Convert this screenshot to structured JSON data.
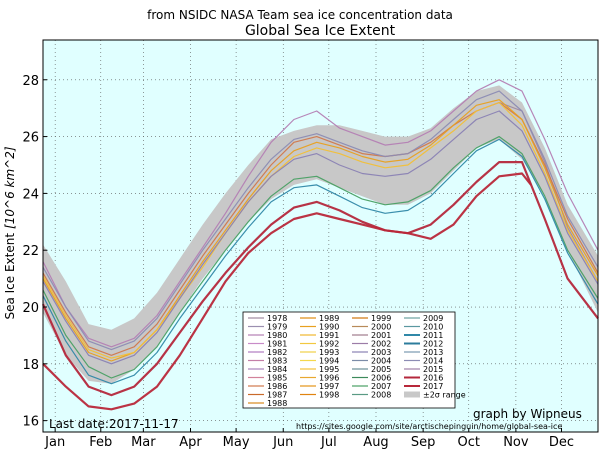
{
  "chart_data": {
    "type": "line",
    "subtitle": "from NSIDC NASA Team sea ice concentration data",
    "title": "Global Sea Ice Extent",
    "ylabel": "Sea Ice Extent",
    "ylabel_unit": "[10^6 km^2]",
    "xlabel": "",
    "ylim": [
      15.6,
      29.4
    ],
    "xlim": [
      0,
      365
    ],
    "grid": true,
    "background": "#e0ffff",
    "yticks": [
      16,
      18,
      20,
      22,
      24,
      26,
      28
    ],
    "xticks": [
      {
        "label": "Jan",
        "day": 8
      },
      {
        "label": "Feb",
        "day": 38
      },
      {
        "label": "Mar",
        "day": 66
      },
      {
        "label": "Apr",
        "day": 97
      },
      {
        "label": "May",
        "day": 127
      },
      {
        "label": "Jun",
        "day": 158
      },
      {
        "label": "Jul",
        "day": 188
      },
      {
        "label": "Aug",
        "day": 219
      },
      {
        "label": "Sep",
        "day": 250
      },
      {
        "label": "Oct",
        "day": 280
      },
      {
        "label": "Nov",
        "day": 311
      },
      {
        "label": "Dec",
        "day": 341
      }
    ],
    "legend_position": "bottom-center",
    "legend_columns": [
      [
        "1978",
        "1979",
        "1980",
        "1981",
        "1982",
        "1983",
        "1984",
        "1985",
        "1986",
        "1987",
        "1988"
      ],
      [
        "1989",
        "1990",
        "1991",
        "1992",
        "1993",
        "1994",
        "1995",
        "1996",
        "1997",
        "1998"
      ],
      [
        "1999",
        "2000",
        "2001",
        "2002",
        "2003",
        "2004",
        "2005",
        "2006",
        "2007",
        "2008"
      ],
      [
        "2009",
        "2010",
        "2011",
        "2012",
        "2013",
        "2014",
        "2015",
        "2016",
        "2017",
        "±2σ range"
      ]
    ],
    "legend_colors": {
      "1978": "#a08aa0",
      "1979": "#9b8fb0",
      "1980": "#b47fb4",
      "1981": "#c88bc8",
      "1982": "#b07bc0",
      "1983": "#c47fa8",
      "1984": "#a884bc",
      "1985": "#d2829a",
      "1986": "#d0784c",
      "1987": "#c96a2a",
      "1988": "#d98a1e",
      "1989": "#e08c10",
      "1990": "#e8a020",
      "1991": "#f0b830",
      "1992": "#f2c840",
      "1993": "#f0d048",
      "1994": "#f4d84c",
      "1995": "#f2c038",
      "1996": "#e8a830",
      "1997": "#e49418",
      "1998": "#e08410",
      "1999": "#d0760c",
      "2000": "#b88a5a",
      "2001": "#a07c8c",
      "2002": "#9c7ca8",
      "2003": "#8a82b4",
      "2004": "#7c8ca8",
      "2005": "#6c9098",
      "2006": "#3c8a5c",
      "2007": "#4aa064",
      "2008": "#5a9a84",
      "2009": "#6ca2a0",
      "2010": "#5a98a0",
      "2011": "#3088a8",
      "2012": "#2c7c9c",
      "2013": "#7a9ab0",
      "2014": "#8c8cb4",
      "2015": "#a080a8",
      "2016": "#b4283c",
      "2017": "#b8283a",
      "±2σ range": "#c8c8c8"
    },
    "band": {
      "name": "±2σ range",
      "days": [
        0,
        15,
        30,
        45,
        60,
        75,
        90,
        105,
        120,
        135,
        150,
        165,
        180,
        195,
        210,
        225,
        240,
        255,
        270,
        285,
        300,
        315,
        330,
        345,
        365
      ],
      "upper": [
        22.2,
        20.9,
        19.4,
        19.2,
        19.6,
        20.5,
        21.7,
        22.9,
        24.0,
        25.0,
        25.9,
        26.2,
        26.4,
        26.4,
        26.2,
        26.0,
        26.0,
        26.3,
        27.0,
        27.6,
        27.8,
        27.2,
        25.6,
        23.6,
        21.8
      ],
      "lower": [
        19.8,
        18.3,
        17.4,
        17.3,
        17.8,
        18.6,
        19.8,
        21.0,
        22.0,
        23.0,
        23.8,
        24.3,
        24.5,
        24.2,
        23.9,
        23.6,
        23.6,
        24.0,
        24.8,
        25.6,
        25.9,
        25.2,
        23.9,
        22.0,
        19.8
      ]
    },
    "series": [
      {
        "name": "1978",
        "color": "#a08aa0",
        "x": [
          300,
          315,
          330,
          345,
          365
        ],
        "y": [
          27.2,
          26.9,
          25.1,
          22.8,
          20.9
        ]
      },
      {
        "name": "1980",
        "color": "#b47fb4",
        "x": [
          0,
          15,
          30,
          45,
          60,
          75,
          90,
          105,
          120,
          135,
          150,
          165,
          180,
          195,
          210,
          225,
          240,
          255,
          270,
          285,
          300,
          315,
          330,
          345,
          365
        ],
        "y": [
          21.6,
          20.0,
          18.9,
          18.6,
          18.9,
          19.7,
          20.9,
          22.1,
          23.3,
          24.6,
          25.8,
          26.6,
          26.9,
          26.3,
          26.0,
          25.7,
          25.8,
          26.2,
          26.9,
          27.6,
          28.0,
          27.6,
          25.9,
          24.0,
          22.0
        ]
      },
      {
        "name": "1986",
        "color": "#d0784c",
        "x": [
          0,
          15,
          30,
          45,
          60,
          75,
          90,
          105,
          120,
          135,
          150,
          165,
          180,
          195,
          210,
          225,
          240,
          255,
          270,
          285,
          300,
          315,
          330,
          345,
          365
        ],
        "y": [
          21.2,
          19.8,
          18.6,
          18.3,
          18.6,
          19.4,
          20.6,
          21.8,
          22.9,
          24.0,
          25.0,
          25.8,
          26.0,
          25.7,
          25.4,
          25.3,
          25.4,
          25.8,
          26.4,
          26.9,
          27.2,
          26.6,
          25.0,
          23.1,
          21.2
        ]
      },
      {
        "name": "1990",
        "color": "#e8a020",
        "x": [
          0,
          15,
          30,
          45,
          60,
          75,
          90,
          105,
          120,
          135,
          150,
          165,
          180,
          195,
          210,
          225,
          240,
          255,
          270,
          285,
          300,
          315,
          330,
          345,
          365
        ],
        "y": [
          21.0,
          19.6,
          18.4,
          18.1,
          18.4,
          19.2,
          20.4,
          21.6,
          22.7,
          23.8,
          24.8,
          25.5,
          25.8,
          25.6,
          25.3,
          25.1,
          25.2,
          25.7,
          26.4,
          27.1,
          27.3,
          26.6,
          24.9,
          22.9,
          21.1
        ]
      },
      {
        "name": "1995",
        "color": "#f2c038",
        "x": [
          0,
          15,
          30,
          45,
          60,
          75,
          90,
          105,
          120,
          135,
          150,
          165,
          180,
          195,
          210,
          225,
          240,
          255,
          270,
          285,
          300,
          315,
          330,
          345,
          365
        ],
        "y": [
          21.1,
          19.7,
          18.5,
          18.2,
          18.4,
          19.2,
          20.3,
          21.4,
          22.6,
          23.7,
          24.6,
          25.3,
          25.6,
          25.4,
          25.1,
          24.9,
          25.0,
          25.6,
          26.2,
          26.9,
          27.2,
          26.4,
          24.7,
          22.7,
          20.9
        ]
      },
      {
        "name": "2003",
        "color": "#8a82b4",
        "x": [
          0,
          15,
          30,
          45,
          60,
          75,
          90,
          105,
          120,
          135,
          150,
          165,
          180,
          195,
          210,
          225,
          240,
          255,
          270,
          285,
          300,
          315,
          330,
          345,
          365
        ],
        "y": [
          20.9,
          19.5,
          18.3,
          18.0,
          18.3,
          19.1,
          20.3,
          21.5,
          22.6,
          23.7,
          24.6,
          25.2,
          25.4,
          25.0,
          24.7,
          24.6,
          24.7,
          25.2,
          25.9,
          26.6,
          26.9,
          26.2,
          24.6,
          22.6,
          20.8
        ]
      },
      {
        "name": "2007",
        "color": "#4aa064",
        "x": [
          0,
          15,
          30,
          45,
          60,
          75,
          90,
          105,
          120,
          135,
          150,
          165,
          180,
          195,
          210,
          225,
          240,
          255,
          270,
          285,
          300,
          315,
          330,
          345,
          365
        ],
        "y": [
          20.6,
          19.0,
          17.9,
          17.5,
          17.8,
          18.6,
          19.8,
          20.9,
          22.0,
          23.0,
          23.9,
          24.5,
          24.6,
          24.2,
          23.8,
          23.6,
          23.7,
          24.1,
          24.9,
          25.6,
          26.0,
          25.4,
          23.9,
          22.0,
          20.3
        ]
      },
      {
        "name": "2011",
        "color": "#3088a8",
        "x": [
          0,
          15,
          30,
          45,
          60,
          75,
          90,
          105,
          120,
          135,
          150,
          165,
          180,
          195,
          210,
          225,
          240,
          255,
          270,
          285,
          300,
          315,
          330,
          345,
          365
        ],
        "y": [
          20.4,
          18.8,
          17.6,
          17.3,
          17.6,
          18.4,
          19.6,
          20.7,
          21.8,
          22.8,
          23.7,
          24.2,
          24.3,
          23.9,
          23.5,
          23.3,
          23.4,
          23.9,
          24.7,
          25.5,
          25.9,
          25.3,
          23.8,
          21.9,
          20.1
        ]
      },
      {
        "name": "2014",
        "color": "#8c8cb4",
        "x": [
          0,
          15,
          30,
          45,
          60,
          75,
          90,
          105,
          120,
          135,
          150,
          165,
          180,
          195,
          210,
          225,
          240,
          255,
          270,
          285,
          300,
          315,
          330,
          345,
          365
        ],
        "y": [
          21.4,
          20.0,
          18.8,
          18.5,
          18.8,
          19.6,
          20.8,
          22.0,
          23.1,
          24.2,
          25.2,
          25.9,
          26.1,
          25.8,
          25.5,
          25.3,
          25.4,
          25.9,
          26.6,
          27.3,
          27.6,
          26.9,
          25.2,
          23.2,
          21.4
        ]
      },
      {
        "name": "2016",
        "color": "#b4283c",
        "x": [
          0,
          15,
          30,
          45,
          60,
          75,
          90,
          105,
          120,
          135,
          150,
          165,
          180,
          195,
          210,
          225,
          240,
          255,
          270,
          285,
          300,
          315,
          330,
          345,
          365
        ],
        "y": [
          20.1,
          18.3,
          17.2,
          16.9,
          17.2,
          18.0,
          19.1,
          20.2,
          21.2,
          22.1,
          22.9,
          23.5,
          23.7,
          23.4,
          23.0,
          22.7,
          22.6,
          22.9,
          23.6,
          24.4,
          25.1,
          25.1,
          23.1,
          21.0,
          19.6
        ]
      },
      {
        "name": "2017",
        "color": "#b8283a",
        "x": [
          0,
          15,
          30,
          45,
          60,
          75,
          90,
          105,
          120,
          135,
          150,
          165,
          180,
          195,
          210,
          225,
          240,
          255,
          270,
          285,
          300,
          315,
          321
        ],
        "y": [
          18.0,
          17.2,
          16.5,
          16.4,
          16.6,
          17.2,
          18.3,
          19.6,
          20.9,
          21.9,
          22.6,
          23.1,
          23.3,
          23.1,
          22.9,
          22.7,
          22.6,
          22.4,
          22.9,
          23.9,
          24.6,
          24.7,
          24.3
        ]
      }
    ],
    "annotations": {
      "last_date": "Last date:2017-11-17",
      "credit": "graph by Wipneus",
      "url": "https://sites.google.com/site/arctischepinguin/home/global-sea-ice"
    }
  }
}
